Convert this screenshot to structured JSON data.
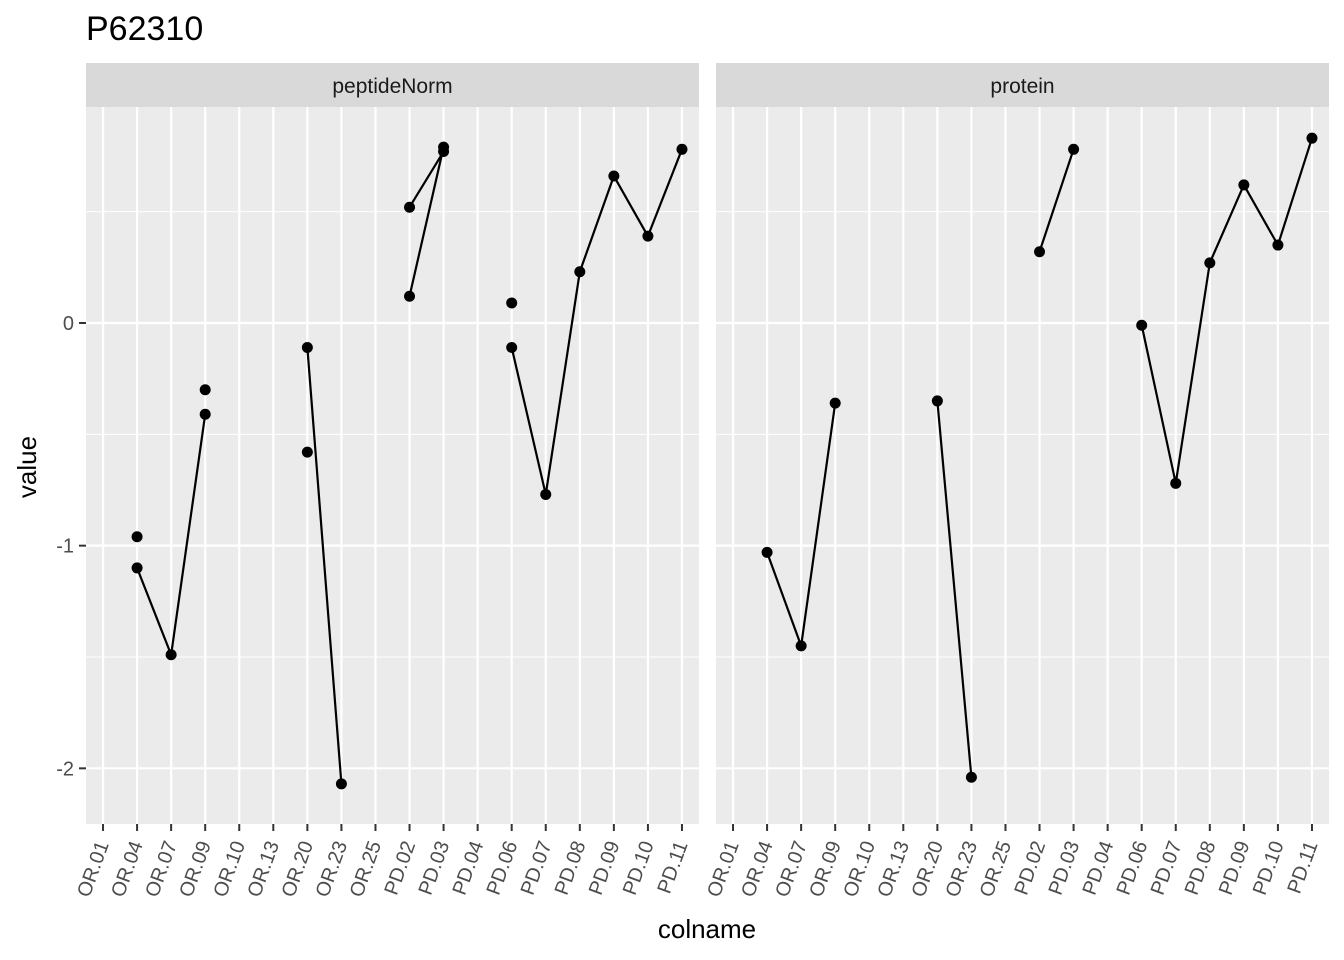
{
  "title": "P62310",
  "colors": {
    "panel_background": "#ebebeb",
    "strip_background": "#d9d9d9",
    "grid_line": "#ffffff",
    "series": "#000000",
    "tick": "#333333"
  },
  "chart_data": {
    "type": "line",
    "title": "P62310",
    "xlabel": "colname",
    "ylabel": "value",
    "ylim": [
      -2.25,
      0.97
    ],
    "y_ticks": [
      -2,
      -1,
      0
    ],
    "y_tick_labels": [
      "-2",
      "-1",
      "0"
    ],
    "grid": true,
    "categories": [
      "OR.01",
      "OR.04",
      "OR.07",
      "OR.09",
      "OR.10",
      "OR.13",
      "OR.20",
      "OR.23",
      "OR.25",
      "PD.02",
      "PD.03",
      "PD.04",
      "PD.06",
      "PD.07",
      "PD.08",
      "PD.09",
      "PD.10",
      "PD.11"
    ],
    "facets": [
      {
        "name": "peptideNorm",
        "series": [
          {
            "values": [
              null,
              -1.1,
              -1.49,
              -0.41,
              null,
              null,
              -0.11,
              -2.07,
              null,
              0.12,
              0.79,
              null,
              -0.11,
              -0.77,
              0.23,
              0.66,
              0.39,
              0.78
            ]
          },
          {
            "values": [
              null,
              -0.96,
              null,
              -0.3,
              null,
              null,
              -0.58,
              null,
              null,
              0.52,
              0.77,
              null,
              0.09,
              null,
              null,
              null,
              null,
              null
            ]
          }
        ]
      },
      {
        "name": "protein",
        "series": [
          {
            "values": [
              null,
              -1.03,
              -1.45,
              -0.36,
              null,
              null,
              -0.35,
              -2.04,
              null,
              0.32,
              0.78,
              null,
              -0.01,
              -0.72,
              0.27,
              0.62,
              0.35,
              0.83
            ]
          }
        ]
      }
    ]
  }
}
